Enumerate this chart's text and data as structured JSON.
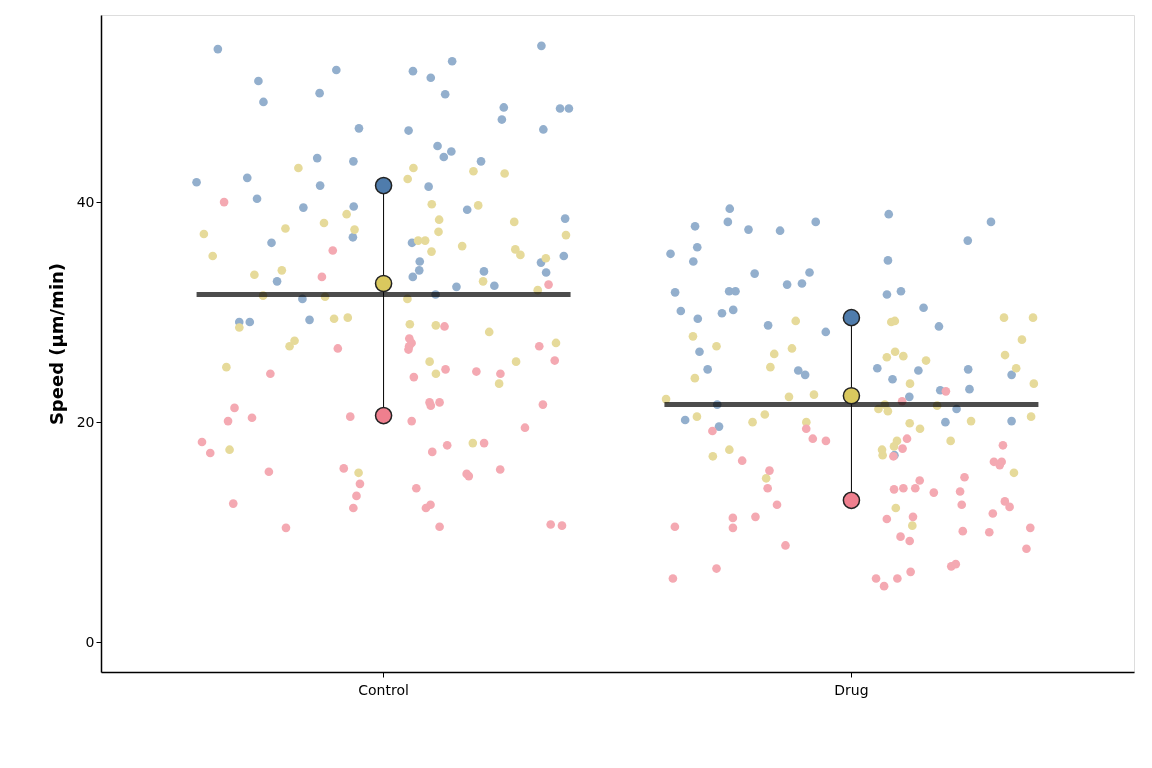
{
  "chart_data": {
    "type": "scatter",
    "ylabel": "Speed (µm/min)",
    "categories": [
      "Control",
      "Drug"
    ],
    "ylim": [
      -2.7,
      57
    ],
    "yticks": [
      0,
      20,
      40
    ],
    "grid": false,
    "marker": "circle",
    "series": [
      {
        "color": "#93afcd",
        "x": [
          "Control",
          "Control",
          "Control",
          "Control",
          "Control",
          "Control",
          "Control",
          "Control",
          "Control",
          "Control",
          "Control",
          "Control",
          "Control",
          "Control",
          "Control",
          "Control",
          "Control",
          "Control",
          "Control",
          "Control",
          "Control",
          "Control",
          "Control",
          "Control",
          "Control",
          "Control",
          "Control",
          "Control",
          "Control",
          "Control",
          "Control",
          "Control",
          "Control",
          "Control",
          "Control",
          "Control",
          "Control",
          "Control",
          "Control",
          "Control",
          "Control",
          "Control",
          "Control",
          "Control",
          "Control",
          "Control",
          "Control",
          "Control",
          "Control",
          "Control",
          "Drug",
          "Drug",
          "Drug",
          "Drug",
          "Drug",
          "Drug",
          "Drug",
          "Drug",
          "Drug",
          "Drug",
          "Drug",
          "Drug",
          "Drug",
          "Drug",
          "Drug",
          "Drug",
          "Drug",
          "Drug",
          "Drug",
          "Drug",
          "Drug",
          "Drug",
          "Drug",
          "Drug",
          "Drug",
          "Drug",
          "Drug",
          "Drug",
          "Drug",
          "Drug",
          "Drug",
          "Drug",
          "Drug",
          "Drug",
          "Drug",
          "Drug",
          "Drug",
          "Drug",
          "Drug",
          "Drug",
          "Drug",
          "Drug",
          "Drug",
          "Drug",
          "Drug",
          "Drug",
          "Drug",
          "Drug",
          "Drug"
        ],
        "values": [
          54.2,
          53.9,
          52.8,
          52.0,
          51.9,
          51.3,
          51.0,
          49.9,
          49.8,
          48.5,
          48.6,
          49.1,
          48.5,
          47.5,
          46.5,
          46.6,
          46.7,
          45.1,
          44.0,
          43.7,
          44.6,
          44.1,
          43.7,
          42.2,
          41.5,
          41.4,
          41.8,
          40.3,
          39.6,
          38.5,
          39.3,
          39.5,
          36.8,
          36.3,
          36.3,
          35.1,
          34.5,
          33.8,
          33.7,
          34.6,
          33.6,
          33.2,
          32.8,
          32.3,
          32.4,
          31.2,
          31.6,
          29.1,
          29.1,
          29.3,
          24.8,
          24.8,
          24.7,
          38.2,
          38.2,
          38.9,
          37.5,
          37.4,
          39.4,
          38.2,
          37.8,
          36.5,
          35.3,
          35.9,
          34.6,
          34.7,
          33.5,
          33.6,
          32.5,
          32.6,
          31.9,
          31.9,
          31.8,
          31.9,
          31.6,
          29.9,
          30.4,
          30.2,
          30.1,
          28.7,
          28.2,
          29.4,
          28.8,
          26.4,
          24.3,
          23.9,
          24.7,
          24.9,
          24.3,
          23.0,
          21.6,
          22.3,
          22.9,
          21.2,
          20.0,
          20.1,
          19.6,
          20.2,
          17.0
        ]
      },
      {
        "color": "#e6da9a",
        "x": [
          "Control",
          "Control",
          "Control",
          "Control",
          "Control",
          "Control",
          "Control",
          "Control",
          "Control",
          "Control",
          "Control",
          "Control",
          "Control",
          "Control",
          "Control",
          "Control",
          "Control",
          "Control",
          "Control",
          "Control",
          "Control",
          "Control",
          "Control",
          "Control",
          "Control",
          "Control",
          "Control",
          "Control",
          "Control",
          "Control",
          "Control",
          "Control",
          "Control",
          "Control",
          "Control",
          "Control",
          "Control",
          "Control",
          "Control",
          "Control",
          "Control",
          "Control",
          "Control",
          "Control",
          "Control",
          "Control",
          "Control",
          "Control",
          "Drug",
          "Drug",
          "Drug",
          "Drug",
          "Drug",
          "Drug",
          "Drug",
          "Drug",
          "Drug",
          "Drug",
          "Drug",
          "Drug",
          "Drug",
          "Drug",
          "Drug",
          "Drug",
          "Drug",
          "Drug",
          "Drug",
          "Drug",
          "Drug",
          "Drug",
          "Drug",
          "Drug",
          "Drug",
          "Drug",
          "Drug",
          "Drug",
          "Drug",
          "Drug",
          "Drug",
          "Drug",
          "Drug",
          "Drug",
          "Drug",
          "Drug",
          "Drug",
          "Drug",
          "Drug",
          "Drug",
          "Drug",
          "Drug",
          "Drug",
          "Drug",
          "Drug",
          "Drug"
        ],
        "values": [
          42.8,
          42.1,
          43.1,
          43.1,
          42.6,
          39.7,
          39.8,
          38.4,
          37.3,
          37.1,
          36.5,
          36.5,
          38.9,
          38.2,
          38.1,
          37.5,
          37.6,
          37.0,
          36.0,
          35.2,
          35.7,
          35.1,
          35.5,
          34.9,
          33.8,
          32.8,
          33.4,
          32.0,
          31.5,
          31.4,
          31.2,
          29.4,
          29.5,
          28.9,
          28.6,
          28.8,
          27.2,
          26.9,
          27.4,
          28.2,
          25.5,
          24.4,
          25.0,
          25.5,
          23.5,
          18.1,
          17.5,
          15.4,
          29.5,
          29.5,
          29.1,
          29.2,
          29.2,
          27.8,
          26.1,
          26.2,
          26.7,
          26.4,
          25.9,
          26.0,
          25.0,
          24.9,
          27.5,
          26.9,
          25.6,
          24.0,
          23.5,
          23.5,
          22.5,
          21.0,
          21.2,
          21.6,
          22.1,
          21.5,
          22.3,
          20.0,
          20.1,
          20.5,
          20.7,
          20.5,
          19.9,
          20.0,
          19.4,
          18.3,
          18.3,
          17.8,
          16.9,
          17.0,
          17.5,
          17.5,
          14.9,
          15.4,
          12.2,
          10.6
        ]
      },
      {
        "color": "#f4a9b2",
        "x": [
          "Control",
          "Control",
          "Control",
          "Control",
          "Control",
          "Control",
          "Control",
          "Control",
          "Control",
          "Control",
          "Control",
          "Control",
          "Control",
          "Control",
          "Control",
          "Control",
          "Control",
          "Control",
          "Control",
          "Control",
          "Control",
          "Control",
          "Control",
          "Control",
          "Control",
          "Control",
          "Control",
          "Control",
          "Control",
          "Control",
          "Control",
          "Control",
          "Control",
          "Control",
          "Control",
          "Control",
          "Control",
          "Control",
          "Control",
          "Control",
          "Control",
          "Control",
          "Control",
          "Control",
          "Control",
          "Control",
          "Control",
          "Control",
          "Drug",
          "Drug",
          "Drug",
          "Drug",
          "Drug",
          "Drug",
          "Drug",
          "Drug",
          "Drug",
          "Drug",
          "Drug",
          "Drug",
          "Drug",
          "Drug",
          "Drug",
          "Drug",
          "Drug",
          "Drug",
          "Drug",
          "Drug",
          "Drug",
          "Drug",
          "Drug",
          "Drug",
          "Drug",
          "Drug",
          "Drug",
          "Drug",
          "Drug",
          "Drug",
          "Drug",
          "Drug",
          "Drug",
          "Drug",
          "Drug",
          "Drug",
          "Drug",
          "Drug",
          "Drug",
          "Drug",
          "Drug",
          "Drug",
          "Drug",
          "Drug",
          "Drug",
          "Drug",
          "Drug",
          "Drug",
          "Drug"
        ],
        "values": [
          40.0,
          35.6,
          33.2,
          32.5,
          28.7,
          27.6,
          26.6,
          27.2,
          26.9,
          26.7,
          26.9,
          24.4,
          24.4,
          24.6,
          24.8,
          25.6,
          24.1,
          21.6,
          21.5,
          21.8,
          21.8,
          21.3,
          20.1,
          20.5,
          19.5,
          20.1,
          20.4,
          17.9,
          18.1,
          18.2,
          17.3,
          17.2,
          15.8,
          15.5,
          15.1,
          15.3,
          15.7,
          14.0,
          14.4,
          13.3,
          12.2,
          12.6,
          12.5,
          12.2,
          10.7,
          10.4,
          10.6,
          10.5,
          22.8,
          21.9,
          18.5,
          18.3,
          19.2,
          19.4,
          18.5,
          17.9,
          17.6,
          16.5,
          16.4,
          16.1,
          16.4,
          16.9,
          15.6,
          15.0,
          14.7,
          14.0,
          14.0,
          13.6,
          13.7,
          13.9,
          14.0,
          12.5,
          12.8,
          12.5,
          12.3,
          11.4,
          11.3,
          11.2,
          11.7,
          11.4,
          10.0,
          10.4,
          10.5,
          10.4,
          10.1,
          9.6,
          9.2,
          8.5,
          8.8,
          6.9,
          7.1,
          6.7,
          6.4,
          5.8,
          5.8,
          5.8,
          5.1
        ]
      },
      {
        "type": "box",
        "color": "#000000",
        "boxes": [
          {
            "low": 20.6,
            "q1": 31.6,
            "median": 31.6,
            "q3": 31.6,
            "high": 41.5
          },
          {
            "low": 12.9,
            "q1": 21.6,
            "median": 21.6,
            "q3": 21.6,
            "high": 29.5
          }
        ]
      },
      {
        "color": "#4f7cac",
        "x": [
          "Control",
          "Drug"
        ],
        "values": [
          41.5,
          29.5
        ]
      },
      {
        "color": "#d9c85e",
        "x": [
          "Control",
          "Drug"
        ],
        "values": [
          32.6,
          22.4
        ]
      },
      {
        "color": "#ef7f8e",
        "x": [
          "Control",
          "Drug"
        ],
        "values": [
          20.6,
          12.9
        ]
      }
    ]
  }
}
